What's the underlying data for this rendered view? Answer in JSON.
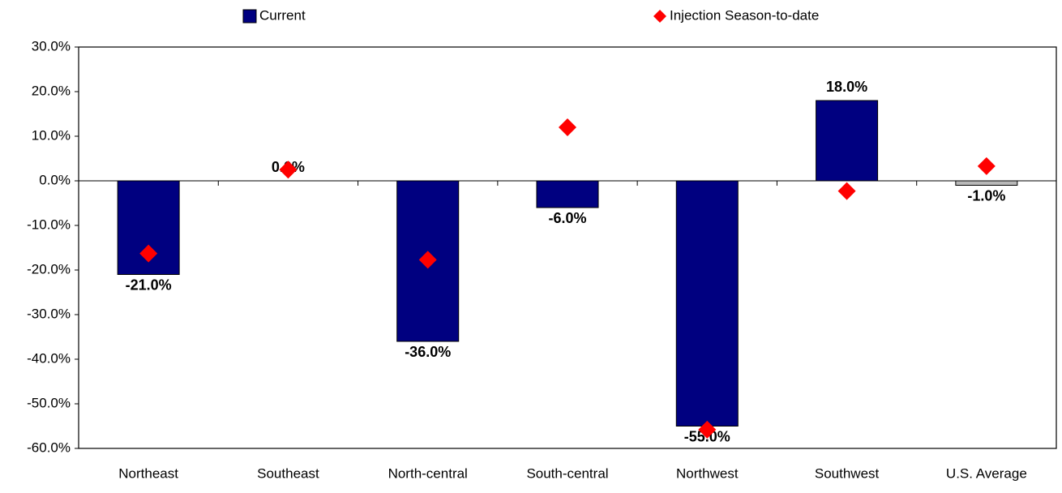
{
  "chart_data": {
    "type": "bar",
    "categories": [
      "Northeast",
      "Southeast",
      "North-central",
      "South-central",
      "Northwest",
      "Southwest",
      "U.S. Average"
    ],
    "series": [
      {
        "name": "Current",
        "type": "bar",
        "color": "#000080",
        "colors": [
          "#000080",
          "#000080",
          "#000080",
          "#000080",
          "#000080",
          "#000080",
          "#b8b8b8"
        ],
        "values": [
          -21,
          0,
          -36,
          -6,
          -55,
          18,
          -1
        ],
        "value_labels": [
          "-21.0%",
          "0.0%",
          "-36.0%",
          "-6.0%",
          "-55.0%",
          "18.0%",
          "-1.0%"
        ]
      },
      {
        "name": "Injection Season-to-date",
        "type": "scatter",
        "color": "#ff0000",
        "values": [
          -16.3,
          2.5,
          -17.7,
          12,
          -55.8,
          -2.3,
          3.3
        ]
      }
    ],
    "ylim": [
      -60,
      30
    ],
    "yticks": [
      {
        "value": -60,
        "label": "-60.0%"
      },
      {
        "value": -50,
        "label": "-50.0%"
      },
      {
        "value": -40,
        "label": "-40.0%"
      },
      {
        "value": -30,
        "label": "-30.0%"
      },
      {
        "value": -20,
        "label": "-20.0%"
      },
      {
        "value": -10,
        "label": "-10.0%"
      },
      {
        "value": 0,
        "label": "0.0%"
      },
      {
        "value": 10,
        "label": "10.0%"
      },
      {
        "value": 20,
        "label": "20.0%"
      },
      {
        "value": 30,
        "label": "30.0%"
      }
    ],
    "grid": false,
    "legend": "top"
  }
}
